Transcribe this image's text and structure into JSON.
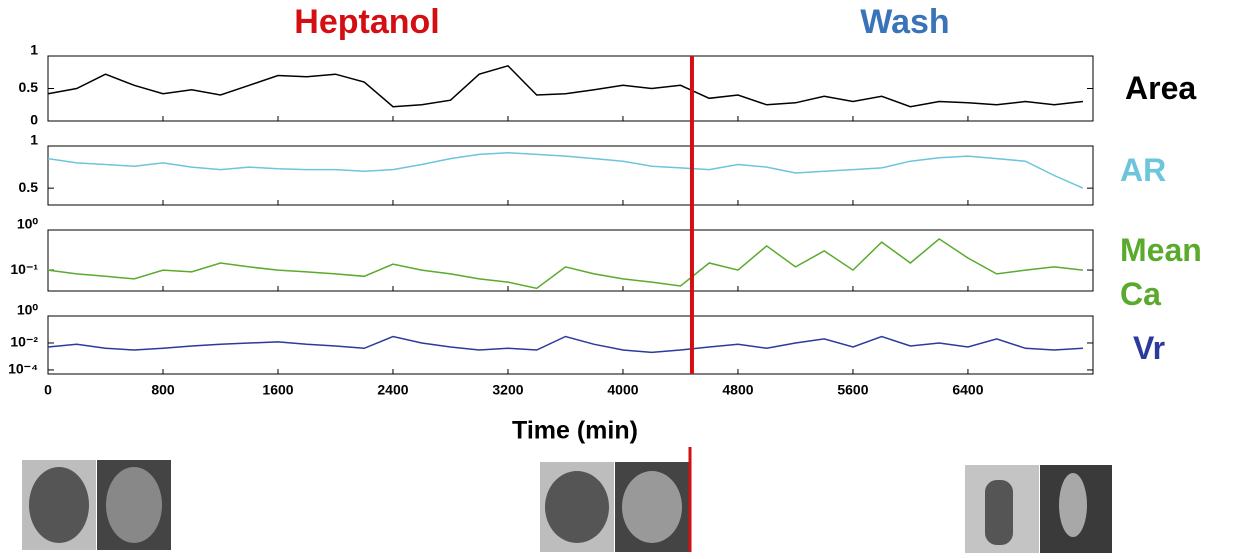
{
  "chart_data": {
    "type": "line",
    "phases": [
      {
        "label": "Heptanol",
        "color": "#d40f14"
      },
      {
        "label": "Wash",
        "color": "#3a74b8"
      }
    ],
    "switch_x": 4480,
    "switch_color": "#d40f14",
    "xlabel": "Time (min)",
    "xlim": [
      0,
      7270
    ],
    "xticks": [
      0,
      800,
      1600,
      2400,
      3200,
      4000,
      4800,
      5600,
      6400
    ],
    "x": [
      0,
      200,
      400,
      600,
      800,
      1000,
      1200,
      1400,
      1600,
      1800,
      2000,
      2200,
      2400,
      2600,
      2800,
      3000,
      3200,
      3400,
      3600,
      3800,
      4000,
      4200,
      4400,
      4600,
      4800,
      5000,
      5200,
      5400,
      5600,
      5800,
      6000,
      6200,
      6400,
      6600,
      6800,
      7000,
      7200
    ],
    "series": [
      {
        "name": "Area",
        "color": "#000000",
        "yscale": "linear",
        "ylim": [
          0,
          1
        ],
        "yticks": [
          0,
          0.5,
          1
        ],
        "values": [
          0.42,
          0.5,
          0.72,
          0.55,
          0.42,
          0.48,
          0.4,
          0.55,
          0.7,
          0.68,
          0.72,
          0.6,
          0.22,
          0.25,
          0.32,
          0.72,
          0.85,
          0.4,
          0.42,
          0.48,
          0.55,
          0.5,
          0.55,
          0.35,
          0.4,
          0.25,
          0.28,
          0.38,
          0.3,
          0.38,
          0.22,
          0.3,
          0.28,
          0.25,
          0.3,
          0.25,
          0.3
        ]
      },
      {
        "name": "AR",
        "color": "#6cc5db",
        "yscale": "linear",
        "ylim": [
          0.3,
          1
        ],
        "yticks": [
          0.5,
          1
        ],
        "values": [
          0.85,
          0.8,
          0.78,
          0.76,
          0.8,
          0.75,
          0.72,
          0.75,
          0.73,
          0.72,
          0.72,
          0.7,
          0.72,
          0.78,
          0.85,
          0.9,
          0.92,
          0.9,
          0.88,
          0.85,
          0.82,
          0.76,
          0.74,
          0.72,
          0.78,
          0.75,
          0.68,
          0.7,
          0.72,
          0.74,
          0.82,
          0.86,
          0.88,
          0.85,
          0.82,
          0.65,
          0.5
        ]
      },
      {
        "name": "Mean Ca",
        "color": "#5aaa2e",
        "yscale": "log",
        "ylim": [
          0.03,
          1
        ],
        "yticks": [
          {
            "value": 1,
            "label": "10⁰"
          },
          {
            "value": 0.1,
            "label": "10⁻¹"
          }
        ],
        "values": [
          0.1,
          0.08,
          0.07,
          0.06,
          0.1,
          0.09,
          0.15,
          0.12,
          0.1,
          0.09,
          0.08,
          0.07,
          0.14,
          0.1,
          0.08,
          0.06,
          0.05,
          0.035,
          0.12,
          0.08,
          0.06,
          0.05,
          0.04,
          0.15,
          0.1,
          0.4,
          0.12,
          0.3,
          0.1,
          0.5,
          0.15,
          0.6,
          0.2,
          0.08,
          0.1,
          0.12,
          0.1
        ]
      },
      {
        "name": "Vr",
        "color": "#2b3a9c",
        "yscale": "log",
        "ylim": [
          5e-05,
          1
        ],
        "yticks": [
          {
            "value": 1,
            "label": "10⁰"
          },
          {
            "value": 0.01,
            "label": "10⁻²"
          },
          {
            "value": 0.0001,
            "label": "10⁻⁴"
          }
        ],
        "values": [
          0.005,
          0.008,
          0.004,
          0.003,
          0.004,
          0.006,
          0.008,
          0.01,
          0.012,
          0.008,
          0.006,
          0.004,
          0.03,
          0.01,
          0.005,
          0.003,
          0.004,
          0.003,
          0.03,
          0.008,
          0.003,
          0.002,
          0.003,
          0.005,
          0.008,
          0.004,
          0.01,
          0.02,
          0.005,
          0.03,
          0.006,
          0.01,
          0.005,
          0.02,
          0.004,
          0.003,
          0.004
        ]
      }
    ]
  }
}
